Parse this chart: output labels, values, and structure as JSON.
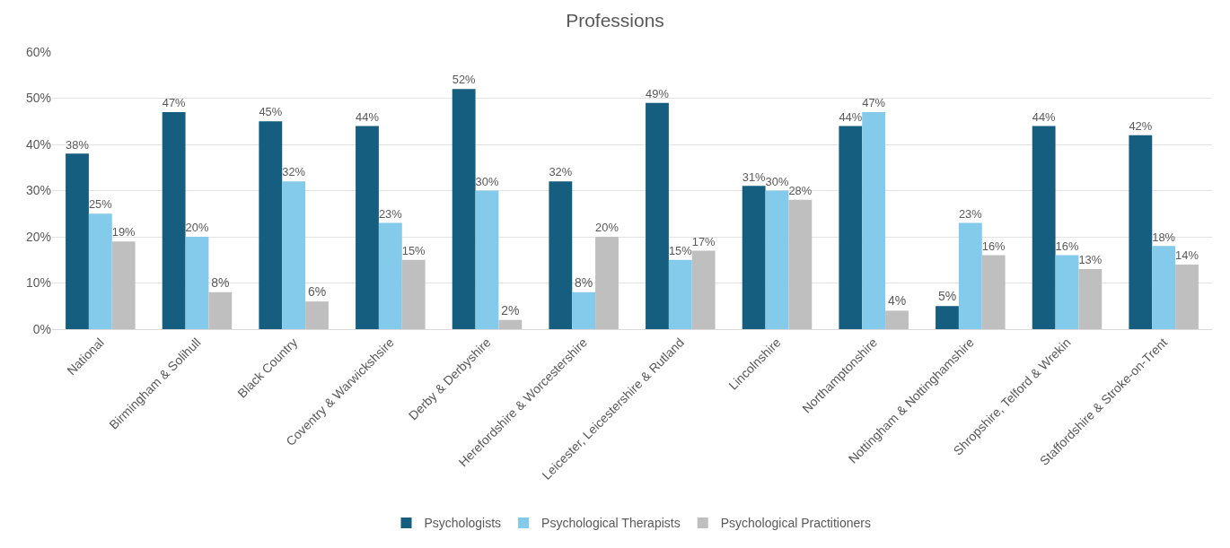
{
  "chart_data": {
    "type": "bar",
    "title": "Professions",
    "categories": [
      "National",
      "Birmingham & Solihull",
      "Black Country",
      "Coventry & Warwickshsire",
      "Derby & Derbyshire",
      "Herefordshire & Worcestershire",
      "Leicester, Leicestershire & Rutland",
      "Lincolnshire",
      "Northamptonshire",
      "Nottingham & Nottinghamshire",
      "Shropshire, Telford & Wrekin",
      "Staffordshire & Stroke-on-Trent"
    ],
    "series": [
      {
        "name": "Psychologists",
        "color": "#165e80",
        "values": [
          38,
          47,
          45,
          44,
          52,
          32,
          49,
          31,
          44,
          5,
          44,
          42
        ],
        "value_labels": [
          "38%",
          "47%",
          "45%",
          "44%",
          "52%",
          "32%",
          "49%",
          "31%",
          "44%",
          "5%",
          "44%",
          "42%"
        ]
      },
      {
        "name": "Psychological Therapists",
        "color": "#83caeb",
        "values": [
          25,
          20,
          32,
          23,
          30,
          8,
          15,
          30,
          47,
          23,
          16,
          18
        ],
        "value_labels": [
          "25%",
          "20%",
          "32%",
          "23%",
          "30%",
          "8%",
          "15%",
          "30%",
          "47%",
          "23%",
          "16%",
          "18%"
        ]
      },
      {
        "name": "Psychological Practitioners",
        "color": "#bfbfbf",
        "values": [
          19,
          8,
          6,
          15,
          2,
          20,
          17,
          28,
          4,
          16,
          13,
          14
        ],
        "value_labels": [
          "19%",
          "8%",
          "6%",
          "15%",
          "2%",
          "20%",
          "17%",
          "28%",
          "4%",
          "16%",
          "13%",
          "14%"
        ]
      }
    ],
    "ylim": [
      0,
      60
    ],
    "yticks": [
      {
        "value": 0,
        "label": "0%"
      },
      {
        "value": 10,
        "label": "10%"
      },
      {
        "value": 20,
        "label": "20%"
      },
      {
        "value": 30,
        "label": "30%"
      },
      {
        "value": 40,
        "label": "40%"
      },
      {
        "value": 50,
        "label": "50%"
      },
      {
        "value": 60,
        "label": "60%"
      }
    ],
    "grid": "y",
    "legend": "bottom"
  }
}
